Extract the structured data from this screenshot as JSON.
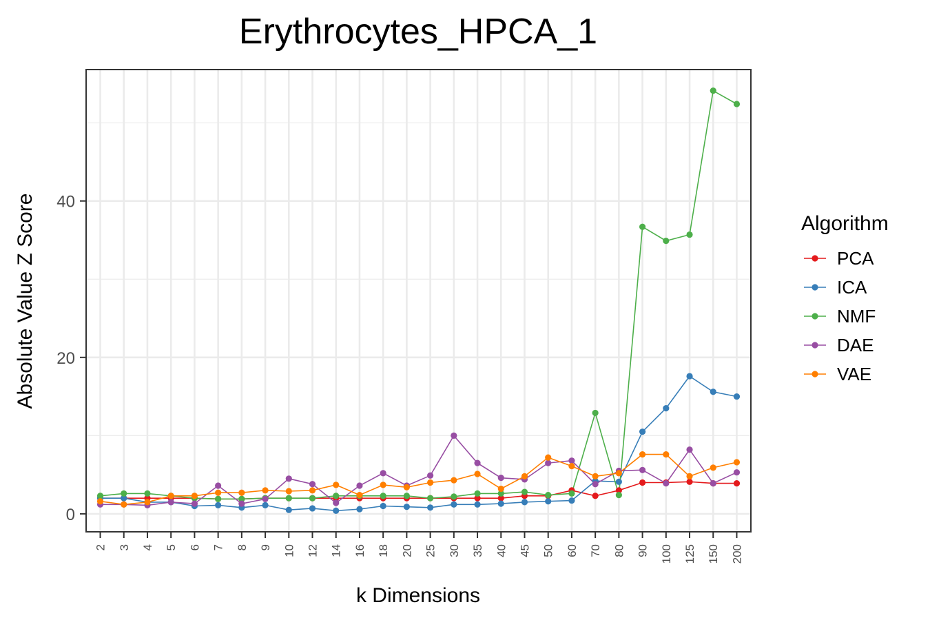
{
  "chart_data": {
    "type": "line",
    "title": "Erythrocytes_HPCA_1",
    "xlabel": "k Dimensions",
    "ylabel": "Absolute Value Z Score",
    "categories": [
      "2",
      "3",
      "4",
      "5",
      "6",
      "7",
      "8",
      "9",
      "10",
      "12",
      "14",
      "16",
      "18",
      "20",
      "25",
      "30",
      "35",
      "40",
      "45",
      "50",
      "60",
      "70",
      "80",
      "90",
      "100",
      "125",
      "150",
      "200"
    ],
    "y_ticks": [
      "0",
      "20",
      "40"
    ],
    "ylim": [
      -2.3,
      56.8
    ],
    "grid": true,
    "legend": {
      "title": "Algorithm",
      "placement": "right"
    },
    "series": [
      {
        "name": "PCA",
        "color": "#e41a1c",
        "values": [
          2.0,
          2.0,
          2.0,
          2.0,
          2.0,
          1.9,
          1.9,
          2.0,
          2.0,
          2.0,
          2.0,
          2.0,
          2.0,
          2.0,
          2.0,
          2.0,
          2.0,
          2.0,
          2.3,
          2.3,
          3.0,
          2.3,
          3.0,
          4.0,
          4.0,
          4.1,
          3.9,
          3.9
        ]
      },
      {
        "name": "ICA",
        "color": "#377eb8",
        "values": [
          2.0,
          2.0,
          1.5,
          1.5,
          1.0,
          1.1,
          0.8,
          1.1,
          0.5,
          0.7,
          0.4,
          0.6,
          1.0,
          0.9,
          0.8,
          1.2,
          1.2,
          1.3,
          1.5,
          1.6,
          1.7,
          4.2,
          4.1,
          10.5,
          13.5,
          17.6,
          15.6,
          15.0
        ]
      },
      {
        "name": "NMF",
        "color": "#4daf4a",
        "values": [
          2.3,
          2.6,
          2.6,
          2.3,
          2.0,
          1.9,
          1.9,
          2.0,
          2.0,
          2.0,
          2.3,
          2.3,
          2.3,
          2.3,
          2.0,
          2.2,
          2.6,
          2.6,
          2.8,
          2.4,
          2.6,
          12.9,
          2.4,
          36.7,
          34.9,
          35.7,
          54.1,
          52.4
        ]
      },
      {
        "name": "DAE",
        "color": "#984ea3",
        "values": [
          1.2,
          1.2,
          1.1,
          1.5,
          1.3,
          3.6,
          1.3,
          1.9,
          4.5,
          3.8,
          1.4,
          3.6,
          5.2,
          3.6,
          4.9,
          10.0,
          6.5,
          4.6,
          4.4,
          6.5,
          6.8,
          3.8,
          5.5,
          5.6,
          3.9,
          8.2,
          3.9,
          5.3
        ]
      },
      {
        "name": "VAE",
        "color": "#ff7f00",
        "values": [
          1.6,
          1.2,
          1.5,
          2.3,
          2.3,
          2.7,
          2.7,
          3.0,
          2.9,
          3.0,
          3.7,
          2.4,
          3.7,
          3.4,
          4.0,
          4.3,
          5.1,
          3.2,
          4.8,
          7.2,
          6.1,
          4.8,
          5.2,
          7.6,
          7.6,
          4.8,
          5.9,
          6.6
        ]
      }
    ]
  }
}
